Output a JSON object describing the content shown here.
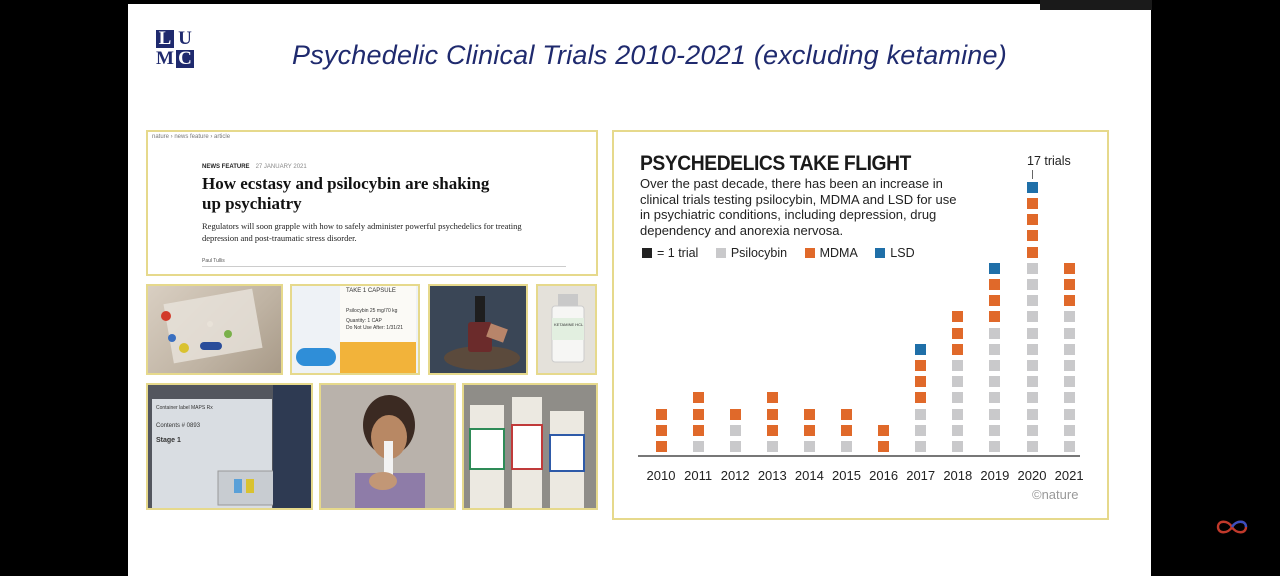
{
  "slide": {
    "title": "Psychedelic Clinical Trials 2010-2021 (excluding ketamine)",
    "logo": {
      "letters": [
        "L",
        "U",
        "M",
        "C"
      ]
    }
  },
  "article": {
    "breadcrumb": "nature  ›  news feature  ›  article",
    "kicker": "NEWS FEATURE",
    "date": "27 JANUARY 2021",
    "headline": "How ecstasy and psilocybin are shaking up psychiatry",
    "standfirst": "Regulators will soon grapple with how to safely administer powerful psychedelics for treating depression and post-traumatic stress disorder.",
    "author": "Paul Tullis"
  },
  "photos": {
    "bottle_label_1": "TAKE 1 CAPSULE",
    "bottle_label_2": "Psilocybin 25 mg/70 kg",
    "bottle_label_3": "Quantity: 1 CAP",
    "bottle_label_4": "Do Not Use After: 1/31/21",
    "vial_label": "KETAMINE HCL",
    "container_label": "Container label  MAPS Rx",
    "container_line2": "Contents # 0893",
    "container_line3": "Stage 1"
  },
  "chart_data": {
    "type": "bar",
    "title": "PSYCHEDELICS TAKE FLIGHT",
    "subtitle": "Over the past decade, there has been an increase in clinical trials testing psilocybin, MDMA and LSD for use in psychiatric conditions, including depression, drug dependency and anorexia nervosa.",
    "unit_legend": "= 1 trial",
    "annotation": "17 trials",
    "credit": "©nature",
    "categories": [
      "2010",
      "2011",
      "2012",
      "2013",
      "2014",
      "2015",
      "2016",
      "2017",
      "2018",
      "2019",
      "2020",
      "2021"
    ],
    "series": [
      {
        "name": "Psilocybin",
        "color": "#c9c9cb",
        "values": [
          0,
          1,
          2,
          1,
          1,
          1,
          0,
          3,
          6,
          8,
          12,
          9
        ]
      },
      {
        "name": "MDMA",
        "color": "#e0692a",
        "values": [
          3,
          3,
          1,
          3,
          2,
          2,
          2,
          3,
          3,
          3,
          4,
          3
        ]
      },
      {
        "name": "LSD",
        "color": "#1f6fa8",
        "values": [
          0,
          0,
          0,
          0,
          0,
          0,
          0,
          1,
          0,
          1,
          1,
          0
        ]
      }
    ],
    "unit_color": "#222222",
    "stacked": true,
    "legend_position": "top-left"
  }
}
